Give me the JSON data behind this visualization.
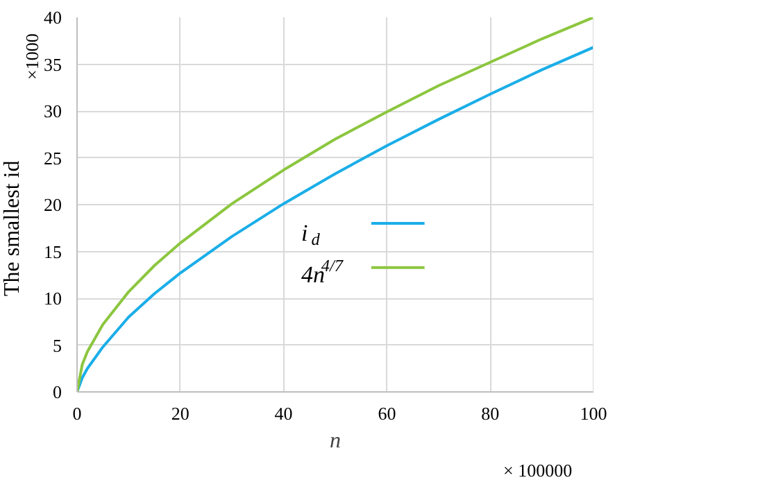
{
  "chart_data": {
    "type": "line",
    "xlabel": "n",
    "ylabel": "The smallest id",
    "x": [
      0,
      1,
      2,
      5,
      10,
      15,
      20,
      30,
      40,
      50,
      60,
      70,
      80,
      90,
      100
    ],
    "series": [
      {
        "name": "i$_{d}$",
        "color": "#1aaee8",
        "values": [
          0,
          1.5,
          2.5,
          4.8,
          8.0,
          10.5,
          12.7,
          16.6,
          20.1,
          23.3,
          26.3,
          29.1,
          31.8,
          34.4,
          36.8
        ]
      },
      {
        "name": "4n$^{4/7}$",
        "color": "#8cc63f",
        "values": [
          0,
          2.9,
          4.3,
          7.2,
          10.7,
          13.5,
          15.9,
          20.1,
          23.7,
          27.0,
          29.9,
          32.7,
          35.2,
          37.7,
          40
        ]
      }
    ],
    "xlim": [
      0,
      100
    ],
    "ylim": [
      0,
      40
    ],
    "xticks": [
      0,
      20,
      40,
      60,
      80,
      100
    ],
    "yticks": [
      0,
      5,
      10,
      15,
      20,
      25,
      30,
      35,
      40
    ],
    "grid": true,
    "legend": "center",
    "line_style": "solid",
    "marker": "none",
    "annotations": [
      "×1000",
      "× 100000"
    ]
  }
}
